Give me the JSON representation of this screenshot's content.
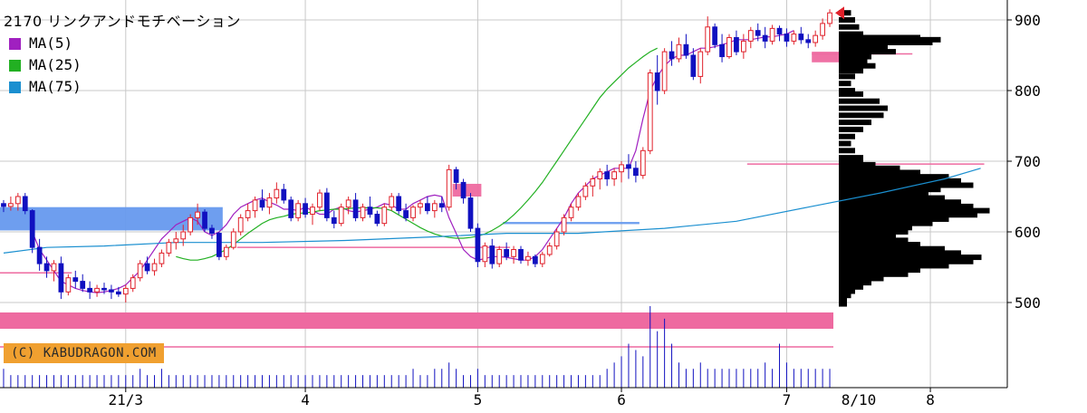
{
  "header": {
    "title": "2170 リンクアンドモチベーション"
  },
  "legend": [
    {
      "label": "MA(5)",
      "color": "#a020c0"
    },
    {
      "label": "MA(25)",
      "color": "#22b022"
    },
    {
      "label": "MA(75)",
      "color": "#1a8fd0"
    }
  ],
  "copyright": "(C) KABUDRAGON.COM",
  "end_date_label": "8/10",
  "colors": {
    "up": "#e0202a",
    "down": "#1010c0",
    "profile": "#000000",
    "grid": "#c8c8c8",
    "pink_band": "#ee6aa0",
    "blue_band": "#6699ee"
  },
  "chart_data": {
    "type": "candlestick",
    "title": "2170 リンクアンドモチベーション",
    "y_ticks": [
      500,
      600,
      700,
      800,
      900
    ],
    "ylim": [
      485,
      920
    ],
    "x_tick_labels": [
      "21/3",
      "4",
      "5",
      "6",
      "7",
      "8"
    ],
    "x_tick_index": [
      17,
      42,
      66,
      86,
      109,
      129
    ],
    "last_date": "8/10",
    "candles_ohlc": [
      [
        640,
        645,
        628,
        636
      ],
      [
        636,
        650,
        630,
        640
      ],
      [
        640,
        655,
        630,
        650
      ],
      [
        650,
        655,
        625,
        630
      ],
      [
        630,
        632,
        570,
        578
      ],
      [
        578,
        590,
        545,
        555
      ],
      [
        555,
        565,
        535,
        545
      ],
      [
        545,
        560,
        530,
        555
      ],
      [
        555,
        565,
        505,
        515
      ],
      [
        515,
        540,
        510,
        535
      ],
      [
        535,
        545,
        520,
        530
      ],
      [
        530,
        540,
        515,
        520
      ],
      [
        520,
        530,
        505,
        515
      ],
      [
        515,
        525,
        508,
        520
      ],
      [
        520,
        528,
        512,
        518
      ],
      [
        518,
        525,
        505,
        515
      ],
      [
        515,
        522,
        508,
        512
      ],
      [
        512,
        525,
        500,
        520
      ],
      [
        520,
        540,
        515,
        535
      ],
      [
        535,
        560,
        530,
        555
      ],
      [
        555,
        565,
        540,
        545
      ],
      [
        545,
        562,
        538,
        555
      ],
      [
        555,
        575,
        550,
        570
      ],
      [
        570,
        590,
        565,
        585
      ],
      [
        585,
        600,
        575,
        590
      ],
      [
        590,
        610,
        580,
        600
      ],
      [
        600,
        625,
        595,
        620
      ],
      [
        620,
        640,
        610,
        628
      ],
      [
        628,
        632,
        600,
        605
      ],
      [
        605,
        610,
        590,
        598
      ],
      [
        598,
        600,
        560,
        565
      ],
      [
        565,
        582,
        560,
        578
      ],
      [
        578,
        605,
        575,
        600
      ],
      [
        600,
        625,
        595,
        620
      ],
      [
        620,
        640,
        615,
        630
      ],
      [
        630,
        650,
        620,
        645
      ],
      [
        645,
        660,
        630,
        635
      ],
      [
        635,
        655,
        625,
        648
      ],
      [
        648,
        670,
        640,
        660
      ],
      [
        660,
        668,
        640,
        645
      ],
      [
        645,
        650,
        615,
        620
      ],
      [
        620,
        645,
        615,
        640
      ],
      [
        640,
        648,
        620,
        625
      ],
      [
        625,
        640,
        610,
        635
      ],
      [
        635,
        660,
        630,
        655
      ],
      [
        655,
        662,
        615,
        620
      ],
      [
        620,
        630,
        605,
        612
      ],
      [
        612,
        640,
        608,
        635
      ],
      [
        635,
        650,
        625,
        645
      ],
      [
        645,
        655,
        615,
        620
      ],
      [
        620,
        640,
        615,
        635
      ],
      [
        635,
        650,
        620,
        625
      ],
      [
        625,
        630,
        608,
        612
      ],
      [
        612,
        640,
        608,
        635
      ],
      [
        635,
        655,
        630,
        650
      ],
      [
        650,
        655,
        625,
        630
      ],
      [
        630,
        640,
        615,
        620
      ],
      [
        620,
        638,
        615,
        635
      ],
      [
        635,
        645,
        625,
        640
      ],
      [
        640,
        650,
        625,
        630
      ],
      [
        630,
        645,
        620,
        640
      ],
      [
        640,
        650,
        628,
        635
      ],
      [
        635,
        695,
        630,
        688
      ],
      [
        688,
        692,
        660,
        670
      ],
      [
        670,
        675,
        640,
        648
      ],
      [
        648,
        655,
        600,
        605
      ],
      [
        605,
        612,
        550,
        558
      ],
      [
        558,
        585,
        550,
        580
      ],
      [
        580,
        590,
        548,
        555
      ],
      [
        555,
        580,
        550,
        575
      ],
      [
        575,
        585,
        560,
        565
      ],
      [
        565,
        580,
        555,
        575
      ],
      [
        575,
        580,
        555,
        560
      ],
      [
        560,
        572,
        552,
        565
      ],
      [
        565,
        568,
        550,
        555
      ],
      [
        555,
        572,
        550,
        568
      ],
      [
        568,
        585,
        565,
        580
      ],
      [
        580,
        605,
        575,
        600
      ],
      [
        600,
        625,
        595,
        620
      ],
      [
        620,
        640,
        615,
        635
      ],
      [
        635,
        655,
        630,
        650
      ],
      [
        650,
        670,
        645,
        665
      ],
      [
        665,
        680,
        650,
        675
      ],
      [
        675,
        690,
        660,
        685
      ],
      [
        685,
        695,
        665,
        675
      ],
      [
        675,
        690,
        665,
        685
      ],
      [
        685,
        700,
        670,
        695
      ],
      [
        695,
        710,
        675,
        690
      ],
      [
        690,
        700,
        670,
        680
      ],
      [
        680,
        720,
        675,
        715
      ],
      [
        715,
        830,
        710,
        825
      ],
      [
        825,
        850,
        780,
        800
      ],
      [
        800,
        860,
        795,
        855
      ],
      [
        855,
        870,
        835,
        845
      ],
      [
        845,
        875,
        840,
        865
      ],
      [
        865,
        880,
        845,
        850
      ],
      [
        850,
        860,
        815,
        820
      ],
      [
        820,
        860,
        810,
        855
      ],
      [
        855,
        905,
        850,
        890
      ],
      [
        890,
        895,
        860,
        865
      ],
      [
        865,
        880,
        840,
        848
      ],
      [
        848,
        880,
        845,
        875
      ],
      [
        875,
        885,
        850,
        855
      ],
      [
        855,
        880,
        845,
        870
      ],
      [
        870,
        890,
        860,
        885
      ],
      [
        885,
        895,
        870,
        878
      ],
      [
        878,
        890,
        860,
        870
      ],
      [
        870,
        893,
        865,
        888
      ],
      [
        888,
        892,
        870,
        880
      ],
      [
        880,
        888,
        862,
        870
      ],
      [
        870,
        885,
        865,
        880
      ],
      [
        880,
        890,
        866,
        872
      ],
      [
        872,
        880,
        860,
        868
      ],
      [
        868,
        885,
        862,
        878
      ],
      [
        878,
        902,
        872,
        895
      ],
      [
        895,
        915,
        890,
        910
      ]
    ],
    "ma": {
      "MA(5)": [
        null,
        null,
        null,
        null,
        600,
        575,
        560,
        545,
        530,
        525,
        520,
        517,
        515,
        514,
        515,
        517,
        520,
        525,
        535,
        545,
        560,
        575,
        590,
        600,
        610,
        615,
        620,
        615,
        600,
        595,
        600,
        610,
        625,
        635,
        640,
        645,
        648,
        642,
        638,
        632,
        632,
        630,
        635,
        630,
        625,
        625,
        632,
        635,
        630,
        628,
        630,
        632,
        635,
        640,
        638,
        632,
        632,
        640,
        645,
        650,
        652,
        650,
        620,
        598,
        575,
        565,
        560,
        562,
        565,
        565,
        564,
        562,
        560,
        560,
        565,
        575,
        590,
        605,
        620,
        640,
        655,
        665,
        675,
        680,
        685,
        690,
        690,
        690,
        715,
        760,
        800,
        820,
        835,
        845,
        850,
        850,
        855,
        860,
        860,
        862,
        865,
        868,
        872,
        872,
        872,
        874,
        876,
        876,
        878,
        880,
        885
      ],
      "MA(25)": [
        null,
        null,
        null,
        null,
        null,
        null,
        null,
        null,
        null,
        null,
        null,
        null,
        null,
        null,
        null,
        null,
        null,
        null,
        null,
        null,
        null,
        null,
        null,
        null,
        565,
        562,
        560,
        560,
        562,
        565,
        570,
        575,
        582,
        590,
        598,
        605,
        612,
        617,
        620,
        622,
        625,
        626,
        627,
        628,
        630,
        631,
        632,
        632,
        633,
        634,
        634,
        634,
        634,
        633,
        630,
        624,
        618,
        612,
        606,
        601,
        597,
        594,
        592,
        591,
        591,
        592,
        594,
        597,
        602,
        608,
        615,
        624,
        634,
        645,
        657,
        670,
        685,
        700,
        715,
        730,
        745,
        760,
        775,
        790,
        802,
        812,
        822,
        832,
        840,
        848,
        855,
        860
      ]
    },
    "ma75_curve": [
      [
        0,
        570
      ],
      [
        6,
        578
      ],
      [
        14,
        580
      ],
      [
        24,
        585
      ],
      [
        36,
        585
      ],
      [
        48,
        588
      ],
      [
        60,
        593
      ],
      [
        70,
        598
      ],
      [
        80,
        598
      ],
      [
        92,
        605
      ],
      [
        102,
        615
      ],
      [
        112,
        635
      ],
      [
        122,
        655
      ],
      [
        131,
        675
      ],
      [
        136,
        690
      ]
    ],
    "volume_relative": [
      3,
      2,
      2,
      2,
      2,
      2,
      2,
      2,
      2,
      2,
      2,
      2,
      2,
      2,
      2,
      2,
      2,
      2,
      2,
      3,
      2,
      2,
      3,
      2,
      2,
      2,
      2,
      2,
      2,
      2,
      2,
      2,
      2,
      2,
      2,
      2,
      2,
      2,
      2,
      2,
      2,
      2,
      2,
      2,
      2,
      2,
      2,
      2,
      2,
      2,
      2,
      2,
      2,
      2,
      2,
      2,
      2,
      3,
      2,
      2,
      3,
      3,
      4,
      3,
      2,
      2,
      3,
      2,
      2,
      2,
      2,
      2,
      2,
      2,
      2,
      2,
      2,
      2,
      2,
      2,
      2,
      2,
      2,
      2,
      3,
      4,
      5,
      7,
      6,
      5,
      13,
      9,
      11,
      7,
      4,
      3,
      3,
      4,
      3,
      3,
      3,
      3,
      3,
      3,
      3,
      3,
      4,
      3,
      7,
      4,
      3,
      3,
      3,
      3,
      3,
      3,
      3,
      3,
      3,
      3,
      6,
      4,
      4,
      3,
      3,
      4,
      3,
      3,
      3,
      3,
      3,
      4
    ],
    "bands": [
      {
        "type": "box",
        "label": "",
        "i_start": 0,
        "i_end": 30,
        "from": 602,
        "to": 635,
        "color": "#6699ee"
      },
      {
        "type": "box",
        "label": "",
        "i_start": 70,
        "i_end": 88,
        "from": 611,
        "to": 614,
        "color": "#6699ee"
      },
      {
        "type": "box",
        "label": "",
        "i_start": 63,
        "i_end": 66,
        "from": 650,
        "to": 668,
        "color": "#ee6aa0"
      },
      {
        "type": "box",
        "label": "",
        "i_start": 113,
        "i_end": 117,
        "from": 840,
        "to": 855,
        "color": "#ee6aa0"
      },
      {
        "type": "line",
        "label": "",
        "i_start": 0,
        "i_end": 9,
        "value": 542,
        "color": "#ee6aa0"
      },
      {
        "type": "line",
        "label": "",
        "i_start": 33,
        "i_end": 70,
        "value": 578,
        "color": "#ee6aa0"
      },
      {
        "type": "line",
        "label": "",
        "i_start": 104,
        "i_end": 136,
        "value": 696,
        "color": "#ee6aa0"
      },
      {
        "type": "line",
        "label": "",
        "i_start": 113,
        "i_end": 126,
        "value": 852,
        "color": "#ee6aa0"
      }
    ],
    "volume_profile": [
      [
        910,
        3
      ],
      [
        900,
        4
      ],
      [
        890,
        5
      ],
      [
        880,
        6
      ],
      [
        875,
        20
      ],
      [
        872,
        25
      ],
      [
        868,
        23
      ],
      [
        862,
        12
      ],
      [
        855,
        14
      ],
      [
        848,
        8
      ],
      [
        842,
        7
      ],
      [
        835,
        9
      ],
      [
        828,
        6
      ],
      [
        820,
        4
      ],
      [
        810,
        3
      ],
      [
        800,
        4
      ],
      [
        795,
        6
      ],
      [
        785,
        10
      ],
      [
        775,
        12
      ],
      [
        765,
        11
      ],
      [
        755,
        8
      ],
      [
        745,
        6
      ],
      [
        735,
        4
      ],
      [
        725,
        3
      ],
      [
        715,
        4
      ],
      [
        705,
        6
      ],
      [
        700,
        6
      ],
      [
        695,
        9
      ],
      [
        690,
        15
      ],
      [
        684,
        20
      ],
      [
        678,
        27
      ],
      [
        672,
        30
      ],
      [
        666,
        33
      ],
      [
        660,
        25
      ],
      [
        654,
        22
      ],
      [
        648,
        26
      ],
      [
        642,
        30
      ],
      [
        636,
        33
      ],
      [
        630,
        37
      ],
      [
        624,
        34
      ],
      [
        618,
        27
      ],
      [
        612,
        23
      ],
      [
        606,
        18
      ],
      [
        600,
        17
      ],
      [
        594,
        14
      ],
      [
        588,
        17
      ],
      [
        582,
        20
      ],
      [
        576,
        26
      ],
      [
        570,
        30
      ],
      [
        564,
        35
      ],
      [
        558,
        33
      ],
      [
        552,
        27
      ],
      [
        546,
        20
      ],
      [
        540,
        17
      ],
      [
        534,
        11
      ],
      [
        528,
        8
      ],
      [
        522,
        6
      ],
      [
        516,
        4
      ],
      [
        510,
        3
      ],
      [
        504,
        2
      ],
      [
        498,
        2
      ]
    ],
    "last_price_marker": 910
  }
}
